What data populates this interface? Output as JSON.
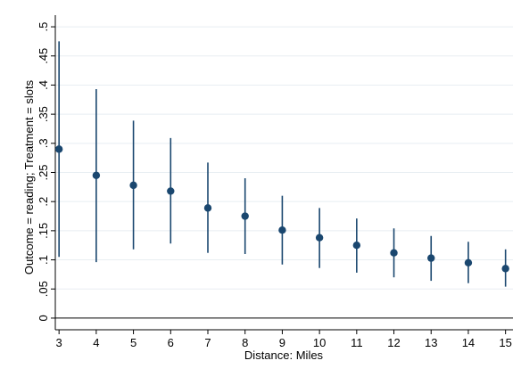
{
  "chart_data": {
    "type": "scatter",
    "subtype": "point-estimates-with-confidence-intervals",
    "title": "",
    "xlabel": "Distance: Miles",
    "ylabel": "Outcome = reading; Treatment = slots",
    "x_ticks": [
      3,
      4,
      5,
      6,
      7,
      8,
      9,
      10,
      11,
      12,
      13,
      14,
      15
    ],
    "y_ticks": [
      0,
      0.05,
      0.1,
      0.15,
      0.2,
      0.25,
      0.3,
      0.35,
      0.4,
      0.45,
      0.5
    ],
    "y_tick_labels": [
      "0",
      ".05",
      ".1",
      ".15",
      ".2",
      ".25",
      ".3",
      ".35",
      ".4",
      ".45",
      ".5"
    ],
    "xlim": [
      2.9,
      15.2
    ],
    "ylim": [
      -0.02,
      0.52
    ],
    "grid": true,
    "reference_line_y": 0,
    "series": [
      {
        "x": [
          3,
          4,
          5,
          6,
          7,
          8,
          9,
          10,
          11,
          12,
          13,
          14,
          15
        ],
        "estimate": [
          0.29,
          0.245,
          0.228,
          0.218,
          0.189,
          0.175,
          0.151,
          0.138,
          0.125,
          0.112,
          0.103,
          0.095,
          0.085
        ],
        "ci_lower": [
          0.105,
          0.096,
          0.118,
          0.128,
          0.112,
          0.11,
          0.092,
          0.086,
          0.078,
          0.07,
          0.064,
          0.06,
          0.054
        ],
        "ci_upper": [
          0.475,
          0.393,
          0.339,
          0.309,
          0.267,
          0.24,
          0.21,
          0.189,
          0.171,
          0.154,
          0.141,
          0.131,
          0.118
        ]
      }
    ],
    "colors": {
      "marker": "#1a476f",
      "ci_line": "#1a476f",
      "grid": "#e8eef2",
      "axis": "#000000",
      "background": "#ffffff"
    }
  }
}
